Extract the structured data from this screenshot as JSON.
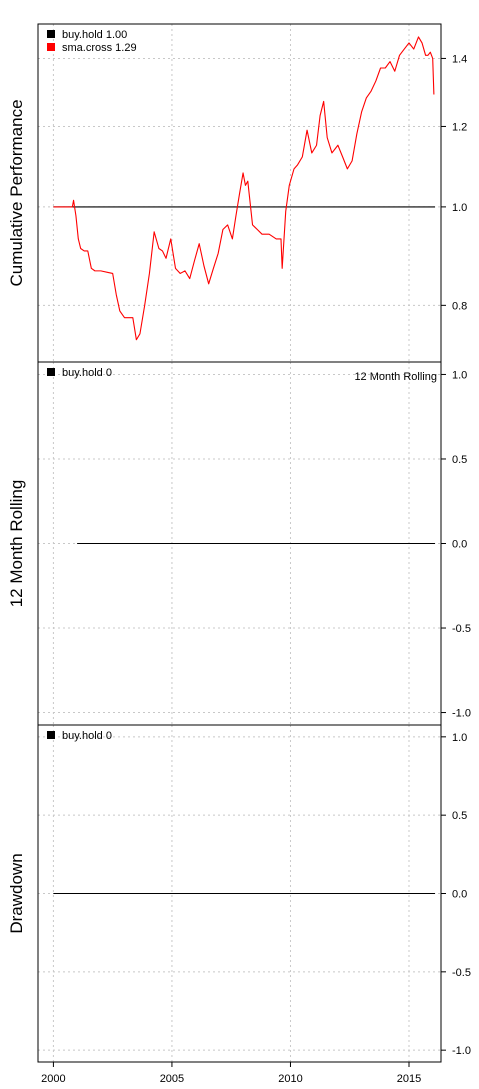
{
  "colors": {
    "buy_hold": "#000000",
    "sma_cross": "#ff0000",
    "grid": "#c8c8c8"
  },
  "chart_data": [
    {
      "type": "line",
      "panel": "cumulative",
      "ylabel": "Cumulative Performance",
      "ylim": [
        0.71,
        1.5
      ],
      "log_scale": true,
      "grid": true,
      "legend_position": "top-left",
      "annotation": "",
      "x_ticks": [
        "2000",
        "2005",
        "2010",
        "2015"
      ],
      "y_ticks": [
        "0.8",
        "1.0",
        "1.2",
        "1.4"
      ],
      "series": [
        {
          "name": "buy.hold",
          "legend_label": "buy.hold 1.00",
          "color": "#000000",
          "x": [
            2000.0,
            2016.1
          ],
          "values": [
            1.0,
            1.0
          ]
        },
        {
          "name": "sma.cross",
          "legend_label": "sma.cross 1.29",
          "color": "#ff0000",
          "x": [
            2000.0,
            2000.8,
            2000.85,
            2000.95,
            2001.05,
            2001.15,
            2001.3,
            2001.45,
            2001.6,
            2001.75,
            2002.0,
            2002.3,
            2002.5,
            2002.65,
            2002.8,
            2003.0,
            2003.25,
            2003.35,
            2003.5,
            2003.65,
            2003.85,
            2004.05,
            2004.25,
            2004.45,
            2004.6,
            2004.75,
            2004.95,
            2005.15,
            2005.35,
            2005.55,
            2005.75,
            2005.95,
            2006.15,
            2006.35,
            2006.55,
            2006.75,
            2006.95,
            2007.15,
            2007.35,
            2007.55,
            2007.7,
            2007.85,
            2008.0,
            2008.1,
            2008.2,
            2008.4,
            2008.6,
            2008.8,
            2009.1,
            2009.4,
            2009.6,
            2009.65,
            2009.8,
            2009.95,
            2010.15,
            2010.3,
            2010.5,
            2010.7,
            2010.9,
            2011.1,
            2011.25,
            2011.4,
            2011.55,
            2011.75,
            2012.0,
            2012.2,
            2012.4,
            2012.6,
            2012.8,
            2013.0,
            2013.2,
            2013.4,
            2013.6,
            2013.8,
            2014.0,
            2014.2,
            2014.4,
            2014.6,
            2014.8,
            2015.0,
            2015.2,
            2015.4,
            2015.55,
            2015.7,
            2015.8,
            2015.9,
            2016.0,
            2016.05
          ],
          "values": [
            1.0,
            1.0,
            1.015,
            0.98,
            0.93,
            0.91,
            0.905,
            0.905,
            0.87,
            0.865,
            0.865,
            0.862,
            0.86,
            0.82,
            0.79,
            0.778,
            0.778,
            0.778,
            0.74,
            0.75,
            0.8,
            0.86,
            0.945,
            0.91,
            0.905,
            0.89,
            0.93,
            0.87,
            0.86,
            0.865,
            0.85,
            0.885,
            0.92,
            0.875,
            0.84,
            0.87,
            0.9,
            0.95,
            0.96,
            0.93,
            0.98,
            1.03,
            1.08,
            1.05,
            1.06,
            0.96,
            0.95,
            0.94,
            0.94,
            0.93,
            0.93,
            0.87,
            0.99,
            1.05,
            1.09,
            1.1,
            1.12,
            1.19,
            1.13,
            1.15,
            1.23,
            1.27,
            1.17,
            1.13,
            1.15,
            1.12,
            1.09,
            1.11,
            1.18,
            1.24,
            1.28,
            1.3,
            1.33,
            1.37,
            1.37,
            1.39,
            1.36,
            1.41,
            1.43,
            1.45,
            1.43,
            1.47,
            1.45,
            1.41,
            1.41,
            1.42,
            1.4,
            1.29
          ]
        }
      ]
    },
    {
      "type": "line",
      "panel": "rolling",
      "ylabel": "12 Month Rolling",
      "ylim": [
        -1.05,
        1.05
      ],
      "grid": true,
      "legend_position": "top-left",
      "annotation": "12 Month Rolling",
      "x_ticks": [
        "2000",
        "2005",
        "2010",
        "2015"
      ],
      "y_ticks": [
        "-1.0",
        "-0.5",
        "0.0",
        "0.5",
        "1.0"
      ],
      "series": [
        {
          "name": "buy.hold",
          "legend_label": "buy.hold 0",
          "color": "#000000",
          "x": [
            2001.0,
            2016.1
          ],
          "values": [
            0.0,
            0.0
          ]
        }
      ]
    },
    {
      "type": "line",
      "panel": "drawdown",
      "ylabel": "Drawdown",
      "ylim": [
        -1.05,
        1.05
      ],
      "grid": true,
      "legend_position": "top-left",
      "annotation": "",
      "x_ticks": [
        "2000",
        "2005",
        "2010",
        "2015"
      ],
      "y_ticks": [
        "-1.0",
        "-0.5",
        "0.0",
        "0.5",
        "1.0"
      ],
      "series": [
        {
          "name": "buy.hold",
          "legend_label": "buy.hold 0",
          "color": "#000000",
          "x": [
            2000.0,
            2016.1
          ],
          "values": [
            0.0,
            0.0
          ]
        }
      ]
    }
  ],
  "x_range": [
    1999.35,
    2016.35
  ]
}
